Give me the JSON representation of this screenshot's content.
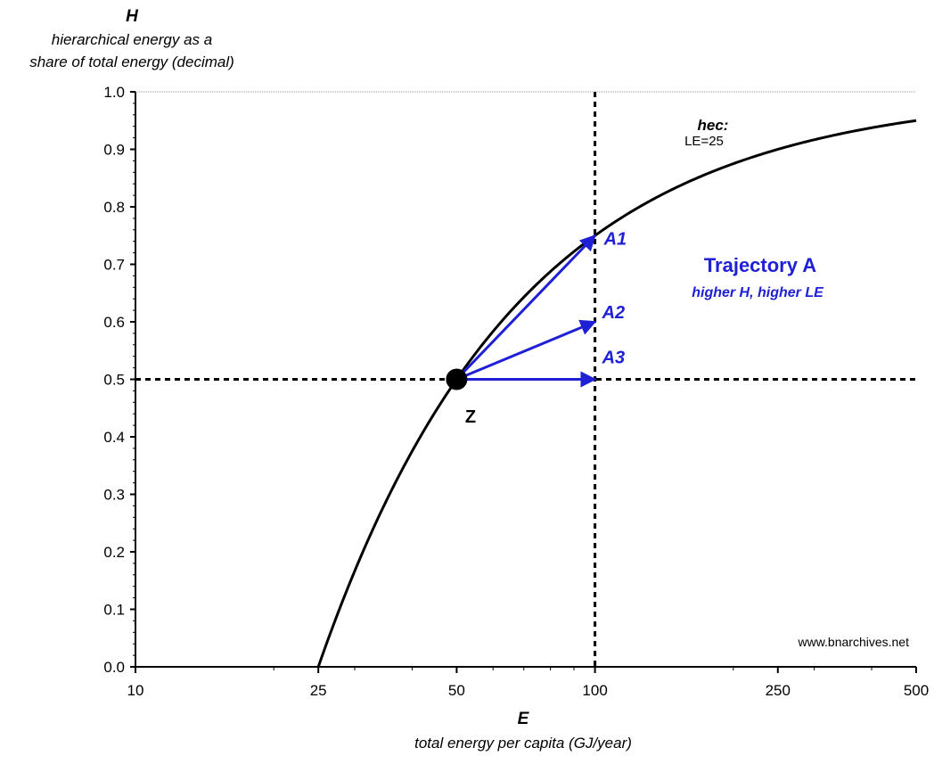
{
  "chart_data": {
    "type": "line",
    "y_axis": {
      "letter": "H",
      "label_line1": "hierarchical energy as a",
      "label_line2": "share of total energy (decimal)",
      "ylim": [
        0,
        1
      ],
      "ticks": [
        0.0,
        0.1,
        0.2,
        0.3,
        0.4,
        0.5,
        0.6,
        0.7,
        0.8,
        0.9,
        1.0
      ],
      "tick_labels": [
        "0.0",
        "0.1",
        "0.2",
        "0.3",
        "0.4",
        "0.5",
        "0.6",
        "0.7",
        "0.8",
        "0.9",
        "1.0"
      ]
    },
    "x_axis": {
      "letter": "E",
      "label": "total energy per capita (GJ/year)",
      "scale": "log",
      "xlim": [
        10,
        500
      ],
      "ticks": [
        10,
        25,
        50,
        100,
        250,
        500
      ],
      "tick_labels": [
        "10",
        "25",
        "50",
        "100",
        "250",
        "500"
      ]
    },
    "curve": {
      "name_line1": "hec:",
      "name_line2": "LE=25",
      "LE": 25,
      "x_start": 25,
      "x_end": 500,
      "color": "#000000"
    },
    "reference_lines": {
      "vertical_x": 100,
      "horizontal_y": 0.5,
      "top_gridline_y": 1.0
    },
    "point": {
      "label": "Z",
      "x": 50,
      "y": 0.5
    },
    "arrows": [
      {
        "label": "A1",
        "x1": 50,
        "y1": 0.5,
        "x2": 100,
        "y2": 0.75
      },
      {
        "label": "A2",
        "x1": 50,
        "y1": 0.5,
        "x2": 100,
        "y2": 0.6
      },
      {
        "label": "A3",
        "x1": 50,
        "y1": 0.5,
        "x2": 100,
        "y2": 0.5
      }
    ],
    "annotation": {
      "title": "Trajectory A",
      "subtitle": "higher H, higher LE"
    },
    "source": "www.bnarchives.net",
    "colors": {
      "trajectory": "#1f1fd6",
      "curve": "#000000"
    }
  }
}
